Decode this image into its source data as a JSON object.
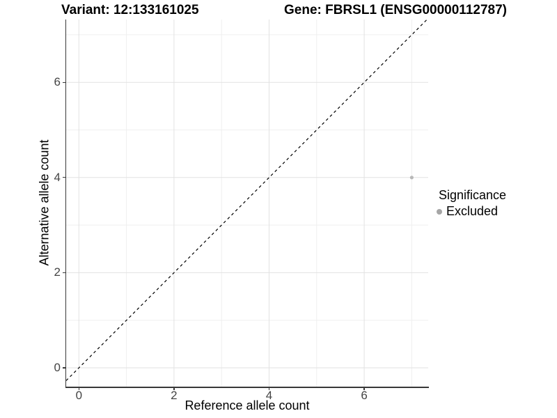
{
  "chart_data": {
    "type": "scatter",
    "title_variant": "Variant: 12:133161025",
    "title_gene": "Gene: FBRSL1 (ENSG00000112787)",
    "xlabel": "Reference allele count",
    "ylabel": "Alternative allele count",
    "xlim": [
      -0.35,
      7.35
    ],
    "ylim": [
      -0.35,
      7.35
    ],
    "x_major_ticks": [
      0,
      2,
      4,
      6
    ],
    "x_minor_ticks": [
      1,
      3,
      5,
      7
    ],
    "y_major_ticks": [
      0,
      2,
      4,
      6
    ],
    "y_minor_ticks": [
      1,
      3,
      5,
      7
    ],
    "grid": "on",
    "points": [
      {
        "x": 7,
        "y": 4,
        "significance": "Excluded",
        "color": "#b8b8b8"
      }
    ],
    "identity_line": {
      "slope": 1,
      "intercept": 0,
      "style": "dashed",
      "color": "#000000"
    },
    "legend": {
      "title": "Significance",
      "position": "right",
      "entries": [
        {
          "label": "Excluded",
          "color": "#a6a6a6"
        }
      ]
    },
    "colors": {
      "grid_major": "#e2e2e2",
      "grid_minor": "#efefef",
      "axis_line": "#383838"
    }
  }
}
